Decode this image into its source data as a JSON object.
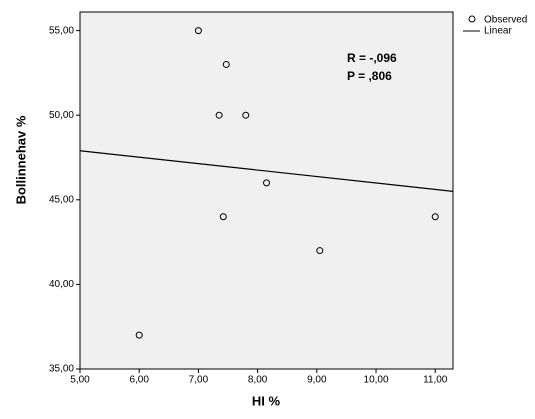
{
  "chart_data": {
    "type": "scatter",
    "x_label": "HI %",
    "y_label": "Bollinnehav %",
    "xlim": [
      5,
      11.3
    ],
    "ylim": [
      35,
      56.1
    ],
    "xticks": [
      {
        "value": 5,
        "label": "5,00"
      },
      {
        "value": 6,
        "label": "6,00"
      },
      {
        "value": 7,
        "label": "7,00"
      },
      {
        "value": 8,
        "label": "8,00"
      },
      {
        "value": 9,
        "label": "9,00"
      },
      {
        "value": 10,
        "label": "10,00"
      },
      {
        "value": 11,
        "label": "11,00"
      }
    ],
    "yticks": [
      {
        "value": 35,
        "label": "35,00"
      },
      {
        "value": 40,
        "label": "40,00"
      },
      {
        "value": 45,
        "label": "45,00"
      },
      {
        "value": 50,
        "label": "50,00"
      },
      {
        "value": 55,
        "label": "55,00"
      }
    ],
    "series": [
      {
        "name": "Observed",
        "color": "#000000",
        "style": "points",
        "x": [
          6.0,
          7.0,
          7.47,
          7.35,
          7.8,
          8.15,
          7.42,
          9.05,
          11.0
        ],
        "values": [
          37,
          55,
          53,
          50,
          50,
          46,
          44,
          42,
          44
        ]
      },
      {
        "name": "Linear",
        "color": "#000000",
        "style": "line",
        "x": [
          5,
          11.3
        ],
        "values": [
          47.9,
          45.5
        ]
      }
    ],
    "annotations": [
      "R = -,096",
      "P =  ,806"
    ],
    "legend": "right"
  }
}
